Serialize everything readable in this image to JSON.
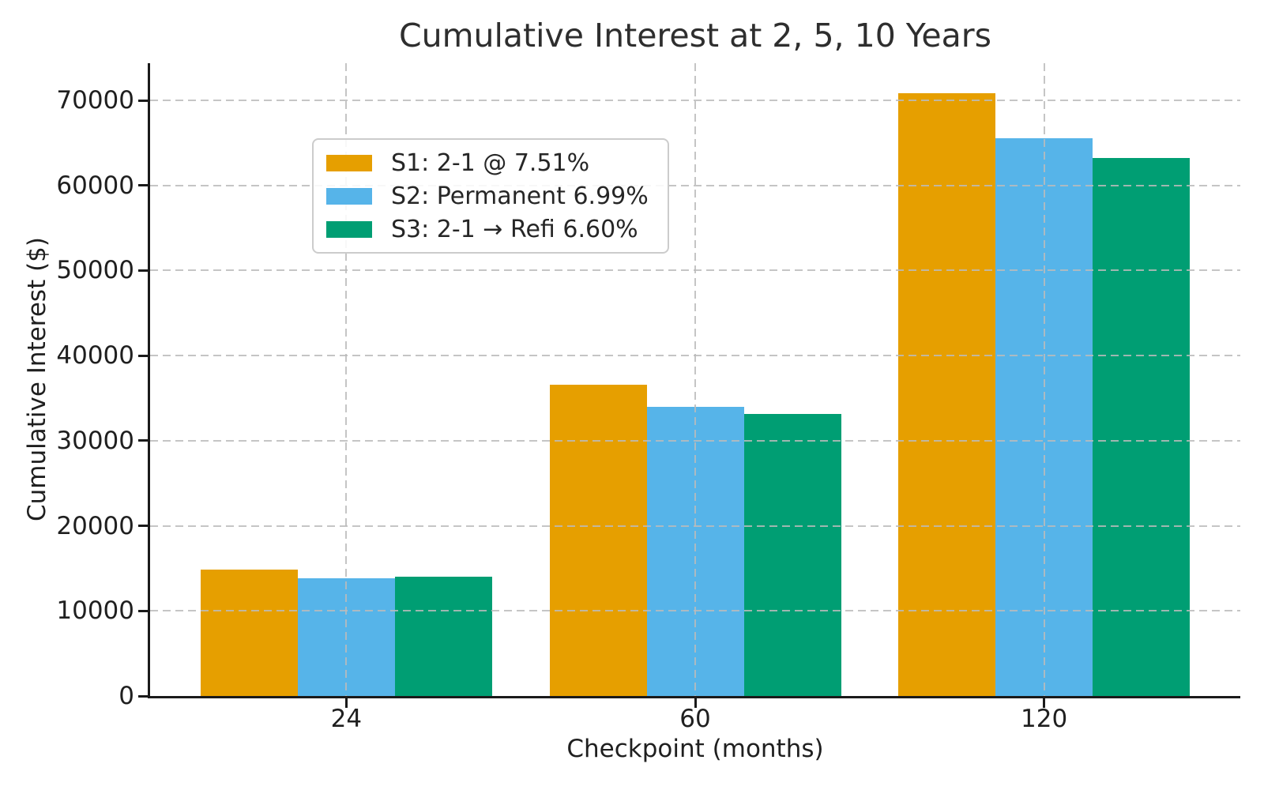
{
  "figure": {
    "title": "Cumulative Interest at 2, 5, 10 Years",
    "xlabel": "Checkpoint (months)",
    "ylabel": "Cumulative Interest ($)"
  },
  "chart_data": {
    "type": "bar",
    "title": "Cumulative Interest at 2, 5, 10 Years",
    "xlabel": "Checkpoint (months)",
    "ylabel": "Cumulative Interest ($)",
    "categories": [
      "24",
      "60",
      "120"
    ],
    "series": [
      {
        "name": "S1: 2-1 @ 7.51%",
        "color": "#E69F00",
        "values": [
          14880,
          36600,
          70800
        ]
      },
      {
        "name": "S2: Permanent 6.99%",
        "color": "#56B4E9",
        "values": [
          13840,
          34000,
          65550
        ]
      },
      {
        "name": "S3: 2-1 → Refi 6.60%",
        "color": "#009E73",
        "values": [
          14000,
          33100,
          63200
        ]
      }
    ],
    "y_ticks": [
      0,
      10000,
      20000,
      30000,
      40000,
      50000,
      60000,
      70000
    ],
    "x_ticks": [
      "24",
      "60",
      "120"
    ],
    "ylim": [
      0,
      74360
    ],
    "grid": true,
    "grid_style": "dashed",
    "grid_on_top": true,
    "legend_position": "upper-left",
    "colors": {
      "grid": "#bbbbbb",
      "spine": "#1a1a1a",
      "text": "#262626",
      "background": "#ffffff"
    }
  }
}
